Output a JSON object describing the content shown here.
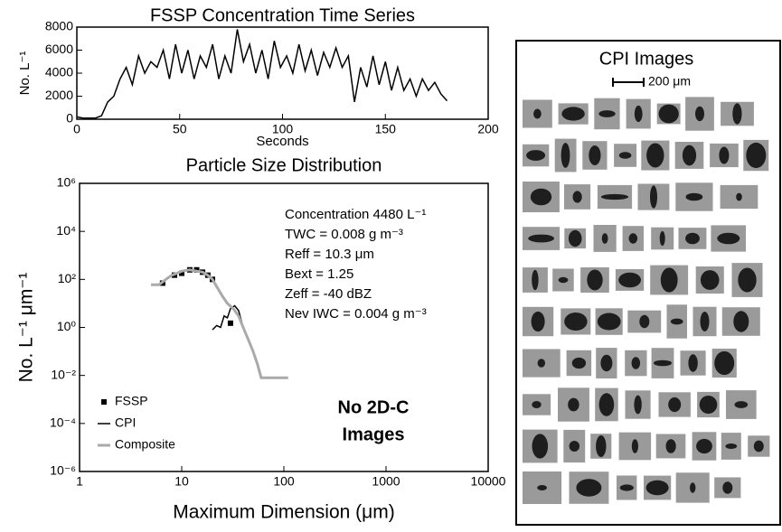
{
  "chart_data": [
    {
      "type": "line",
      "title": "FSSP Concentration Time Series",
      "xlabel": "Seconds",
      "ylabel": "No. L⁻¹",
      "xlim": [
        0,
        200
      ],
      "xticks": [
        0,
        50,
        100,
        150,
        200
      ],
      "ylim": [
        0,
        8000
      ],
      "yticks": [
        0,
        2000,
        4000,
        6000,
        8000
      ],
      "series": [
        {
          "name": "FSSP",
          "color": "#000000",
          "x": [
            0,
            3,
            6,
            9,
            12,
            15,
            18,
            21,
            24,
            27,
            30,
            33,
            36,
            39,
            42,
            45,
            48,
            51,
            54,
            57,
            60,
            63,
            66,
            69,
            72,
            75,
            78,
            81,
            84,
            87,
            90,
            93,
            96,
            99,
            102,
            105,
            108,
            111,
            114,
            117,
            120,
            123,
            126,
            129,
            132,
            135,
            138,
            141,
            144,
            147,
            150,
            153,
            156,
            159,
            162,
            165,
            168,
            171,
            174,
            177,
            180
          ],
          "values": [
            200,
            100,
            100,
            100,
            300,
            1500,
            2000,
            3500,
            4500,
            3000,
            5500,
            4000,
            5000,
            4500,
            6000,
            3500,
            6500,
            4000,
            6000,
            3500,
            5500,
            4500,
            6500,
            3500,
            5500,
            4000,
            7800,
            5000,
            6500,
            4000,
            6000,
            3500,
            6800,
            4500,
            5500,
            4000,
            6500,
            4200,
            6000,
            3800,
            5800,
            4500,
            6200,
            4500,
            5500,
            1500,
            4500,
            2800,
            5500,
            3000,
            5000,
            2500,
            4500,
            2500,
            3500,
            2000,
            3500,
            2500,
            3200,
            2200,
            1600
          ]
        }
      ]
    },
    {
      "type": "line",
      "title": "Particle Size Distribution",
      "xlabel": "Maximum Dimension (μm)",
      "ylabel": "No. L⁻¹ μm⁻¹",
      "xlog": true,
      "ylog": true,
      "xlim": [
        1,
        10000
      ],
      "xticks": [
        1,
        10,
        100,
        1000,
        10000
      ],
      "ylim": [
        1e-06,
        1000000
      ],
      "yticks": [
        {
          "value": 1e-06,
          "label": "10⁻⁶"
        },
        {
          "value": 0.0001,
          "label": "10⁻⁴"
        },
        {
          "value": 0.01,
          "label": "10⁻²"
        },
        {
          "value": 1,
          "label": "10⁰"
        },
        {
          "value": 100,
          "label": "10²"
        },
        {
          "value": 10000,
          "label": "10⁴"
        },
        {
          "value": 1000000,
          "label": "10⁶"
        }
      ],
      "series": [
        {
          "name": "FSSP",
          "color": "#000000",
          "style": "markers",
          "x": [
            6.5,
            8.5,
            10,
            12,
            14,
            16,
            18,
            20,
            30
          ],
          "values": [
            70,
            150,
            180,
            250,
            250,
            200,
            150,
            100,
            1.5
          ]
        },
        {
          "name": "CPI",
          "color": "#000000",
          "style": "line",
          "x": [
            20,
            22,
            24,
            26,
            28,
            30,
            33,
            36,
            40,
            45,
            50,
            55,
            60
          ],
          "values": [
            0.8,
            1.2,
            1,
            3,
            2.5,
            6,
            8,
            5,
            1,
            0.3,
            0.1,
            0.03,
            0.008
          ]
        },
        {
          "name": "Composite",
          "color": "#aaaaaa",
          "style": "line",
          "x": [
            5,
            6,
            7,
            8,
            9,
            10,
            12,
            14,
            16,
            18,
            20,
            22,
            25,
            28,
            32,
            36,
            40,
            45,
            50,
            55,
            60,
            110
          ],
          "values": [
            60,
            60,
            100,
            150,
            180,
            220,
            250,
            220,
            200,
            150,
            100,
            50,
            20,
            10,
            6,
            3,
            1,
            0.3,
            0.1,
            0.03,
            0.008,
            0.008
          ]
        }
      ],
      "annotations": [
        "Concentration 4480 L⁻¹",
        "TWC = 0.008 g m⁻³",
        "Reff = 10.3 μm",
        "Bext = 1.25",
        "Zeff = -40 dBZ",
        "Nev IWC = 0.004 g m⁻³"
      ],
      "note": [
        "No 2D-C",
        "Images"
      ]
    }
  ],
  "cpi_panel": {
    "title": "CPI Images",
    "scale_label": "200 μm"
  }
}
